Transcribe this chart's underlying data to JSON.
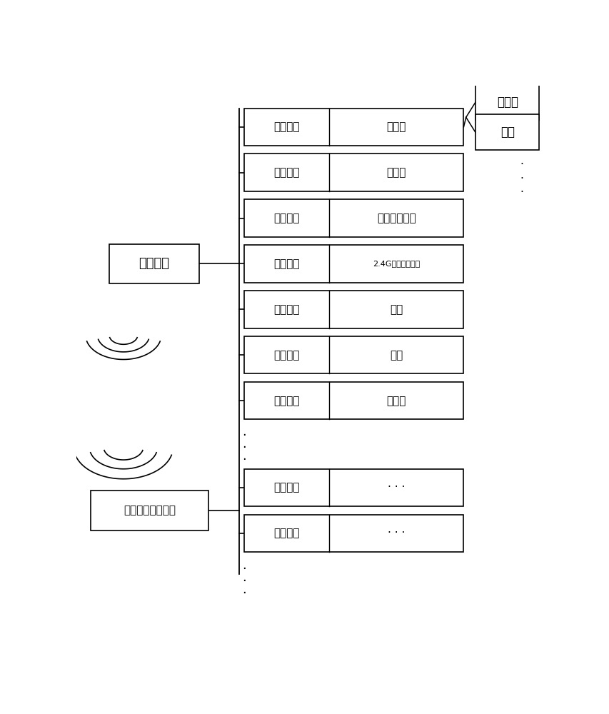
{
  "bg_color": "#ffffff",
  "box_rows": [
    {
      "label": "驱动板",
      "small": false,
      "branch": true
    },
    {
      "label": "感应器",
      "small": false,
      "branch": false
    },
    {
      "label": "红外接收元件",
      "small": false,
      "branch": false
    },
    {
      "label": "2.4G智能家居元件",
      "small": true,
      "branch": false
    },
    {
      "label": "电机",
      "small": false,
      "branch": false
    },
    {
      "label": "舵机",
      "small": false,
      "branch": false
    },
    {
      "label": "传感器",
      "small": false,
      "branch": false
    }
  ],
  "bottom_rows": [
    {
      "label": "· · ·"
    },
    {
      "label": "· · ·"
    }
  ],
  "right_boxes": [
    "感应器",
    "电机"
  ],
  "main_ctrl_text": "主控模块",
  "wireless_text": "无线通信控制设备",
  "left_col_text": "运算芯片",
  "figw": 8.54,
  "figh": 10.0,
  "dpi": 100
}
